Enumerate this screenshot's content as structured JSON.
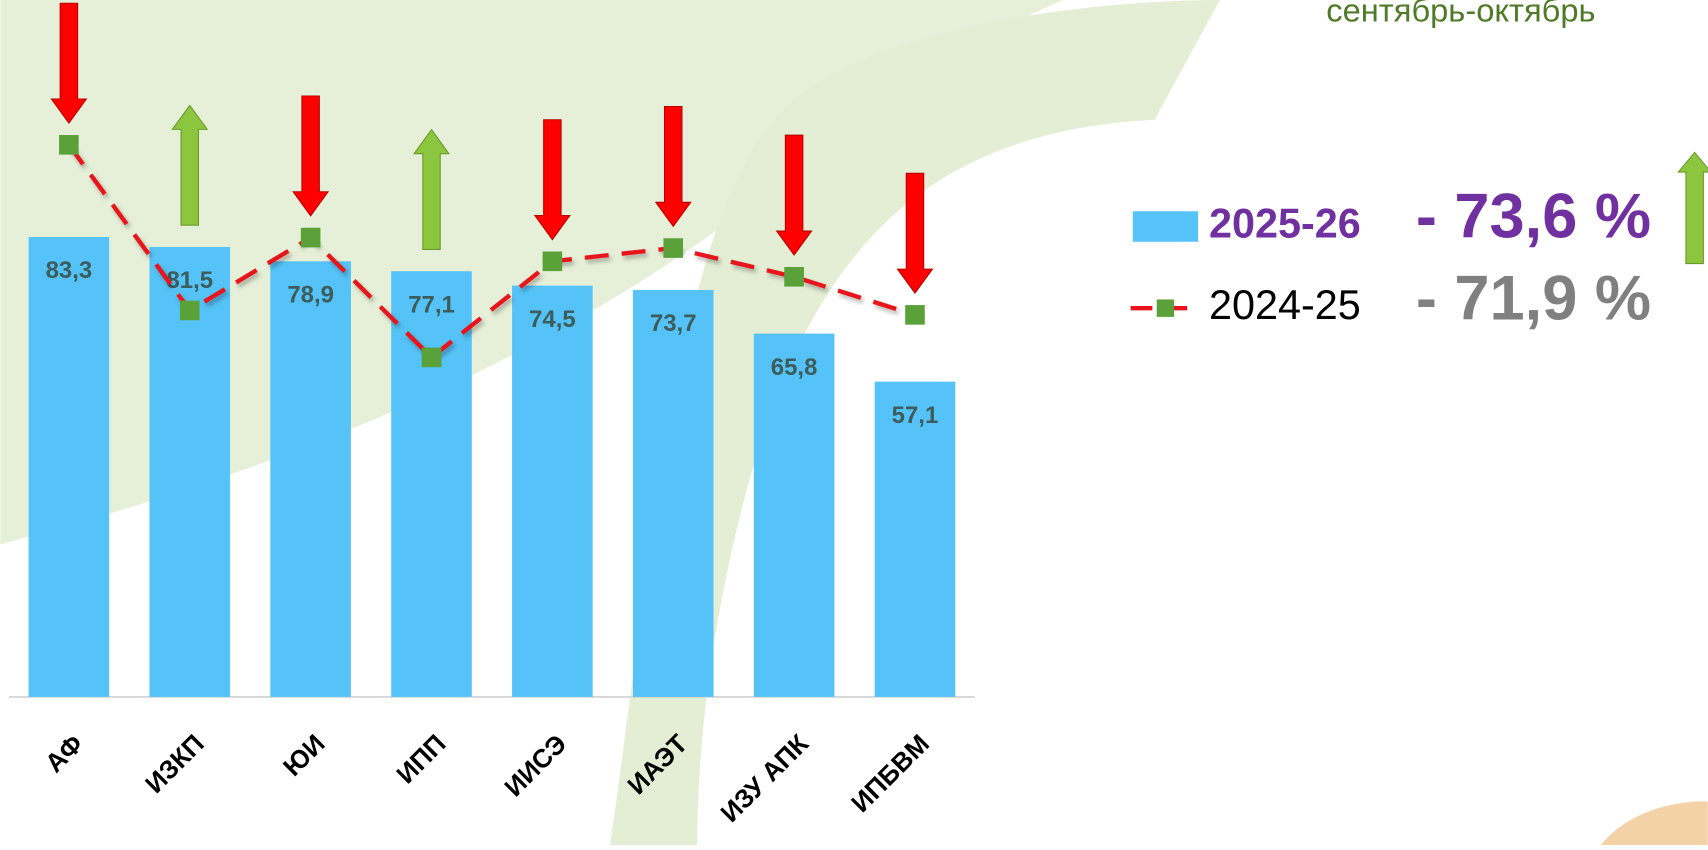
{
  "chart_data": {
    "type": "bar-line",
    "subtitle": "сентябрь-октябрь",
    "categories": [
      "АФ",
      "ИЗКП",
      "ЮИ",
      "ИПП",
      "ИИСЭ",
      "ИАЭТ",
      "ИЗУ АПК",
      "ИПБВМ"
    ],
    "ylim": [
      0,
      100
    ],
    "series": [
      {
        "name": "2025-26",
        "type": "bar",
        "color": "#55c3f7",
        "summary": "- 73,6 %",
        "values": [
          83.3,
          81.5,
          78.9,
          77.1,
          74.5,
          73.7,
          65.8,
          57.1
        ],
        "value_labels": [
          "83,3",
          "81,5",
          "78,9",
          "77,1",
          "74,5",
          "73,7",
          "65,8",
          "57,1"
        ]
      },
      {
        "name": "2024-25",
        "type": "line",
        "color": "#e8141a",
        "marker_color": "#5aa13a",
        "summary": "- 71,9 %",
        "values": [
          100,
          70,
          83.2,
          61.5,
          78.9,
          81.3,
          76.1,
          69.2
        ]
      }
    ]
  }
}
